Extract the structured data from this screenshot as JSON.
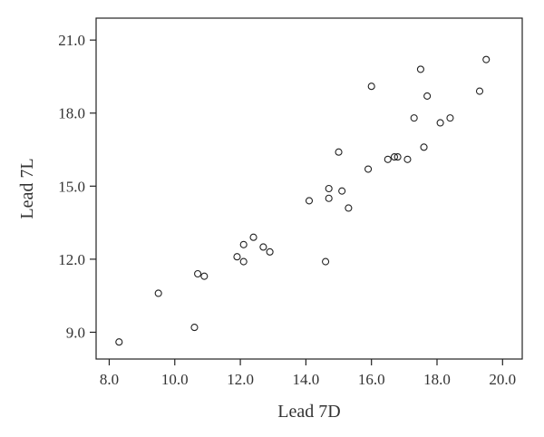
{
  "chart_data": {
    "type": "scatter",
    "title": "",
    "xlabel": "Lead 7D",
    "ylabel": "Lead 7L",
    "xlim": [
      7.6,
      20.6
    ],
    "ylim": [
      7.9,
      21.9
    ],
    "x_ticks": [
      8.0,
      10.0,
      12.0,
      14.0,
      16.0,
      18.0,
      20.0
    ],
    "x_tick_labels": [
      "8.0",
      "10.0",
      "12.0",
      "14.0",
      "16.0",
      "18.0",
      "20.0"
    ],
    "y_ticks": [
      9.0,
      12.0,
      15.0,
      18.0,
      21.0
    ],
    "y_tick_labels": [
      "9.0",
      "12.0",
      "15.0",
      "18.0",
      "21.0"
    ],
    "grid": false,
    "series": [
      {
        "points": [
          [
            8.3,
            8.6
          ],
          [
            9.5,
            10.6
          ],
          [
            10.6,
            9.2
          ],
          [
            10.7,
            11.4
          ],
          [
            10.9,
            11.3
          ],
          [
            11.9,
            12.1
          ],
          [
            12.1,
            12.6
          ],
          [
            12.1,
            11.9
          ],
          [
            12.4,
            12.9
          ],
          [
            12.7,
            12.5
          ],
          [
            12.9,
            12.3
          ],
          [
            14.1,
            14.4
          ],
          [
            14.6,
            11.9
          ],
          [
            14.7,
            14.9
          ],
          [
            14.7,
            14.5
          ],
          [
            15.0,
            16.4
          ],
          [
            15.1,
            14.8
          ],
          [
            15.3,
            14.1
          ],
          [
            15.9,
            15.7
          ],
          [
            16.0,
            19.1
          ],
          [
            16.5,
            16.1
          ],
          [
            16.7,
            16.2
          ],
          [
            16.8,
            16.2
          ],
          [
            17.1,
            16.1
          ],
          [
            17.3,
            17.8
          ],
          [
            17.5,
            19.8
          ],
          [
            17.6,
            16.6
          ],
          [
            17.7,
            18.7
          ],
          [
            18.1,
            17.6
          ],
          [
            18.4,
            17.8
          ],
          [
            19.3,
            18.9
          ],
          [
            19.5,
            20.2
          ]
        ]
      }
    ]
  }
}
